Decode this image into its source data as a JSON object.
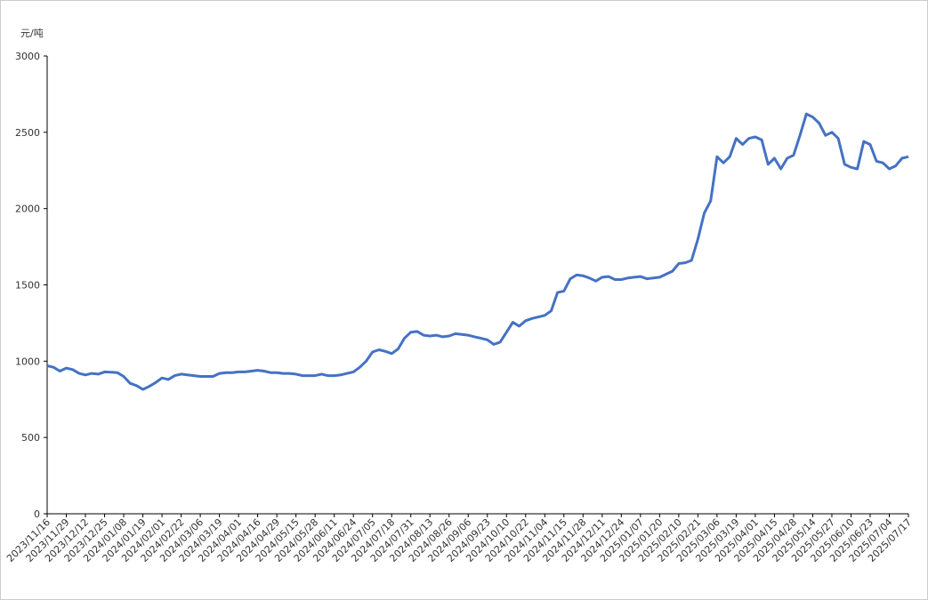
{
  "chart_data": {
    "type": "line",
    "y_label": "元/吨",
    "categories": [
      "2023/11/16",
      null,
      null,
      "2023/11/29",
      null,
      null,
      "2023/12/12",
      null,
      null,
      "2023/12/25",
      null,
      null,
      "2024/01/08",
      null,
      null,
      "2024/01/19",
      null,
      null,
      "2024/02/01",
      null,
      null,
      "2024/02/22",
      null,
      null,
      "2024/03/06",
      null,
      null,
      "2024/03/19",
      null,
      null,
      "2024/04/01",
      null,
      null,
      "2024/04/16",
      null,
      null,
      "2024/04/29",
      null,
      null,
      "2024/05/15",
      null,
      null,
      "2024/05/28",
      null,
      null,
      "2024/06/11",
      null,
      null,
      "2024/06/24",
      null,
      null,
      "2024/07/05",
      null,
      null,
      "2024/07/18",
      null,
      null,
      "2024/07/31",
      null,
      null,
      "2024/08/13",
      null,
      null,
      "2024/08/26",
      null,
      null,
      "2024/09/06",
      null,
      null,
      "2024/09/23",
      null,
      null,
      "2024/10/10",
      null,
      null,
      "2024/10/22",
      null,
      null,
      "2024/11/04",
      null,
      null,
      "2024/11/15",
      null,
      null,
      "2024/11/28",
      null,
      null,
      "2024/12/11",
      null,
      null,
      "2024/12/24",
      null,
      null,
      "2025/01/07",
      null,
      null,
      "2025/01/20",
      null,
      null,
      "2025/02/10",
      null,
      null,
      "2025/02/21",
      null,
      null,
      "2025/03/06",
      null,
      null,
      "2025/03/19",
      null,
      null,
      "2025/04/01",
      null,
      null,
      "2025/04/15",
      null,
      null,
      "2025/04/28",
      null,
      null,
      "2025/05/14",
      null,
      null,
      "2025/05/27",
      null,
      null,
      "2025/06/10",
      null,
      null,
      "2025/06/23",
      null,
      null,
      "2025/07/04",
      null,
      null,
      "2025/07/17"
    ],
    "series": [
      {
        "color": "#4472c4",
        "values": [
          970,
          960,
          935,
          955,
          945,
          920,
          910,
          920,
          915,
          930,
          928,
          925,
          900,
          855,
          840,
          815,
          835,
          860,
          890,
          880,
          905,
          915,
          910,
          905,
          900,
          900,
          900,
          920,
          925,
          925,
          930,
          930,
          935,
          940,
          935,
          925,
          925,
          920,
          920,
          915,
          905,
          905,
          905,
          915,
          905,
          905,
          910,
          920,
          930,
          960,
          1000,
          1060,
          1075,
          1065,
          1050,
          1080,
          1150,
          1190,
          1195,
          1170,
          1165,
          1170,
          1160,
          1165,
          1180,
          1175,
          1170,
          1160,
          1150,
          1140,
          1110,
          1125,
          1190,
          1255,
          1230,
          1265,
          1280,
          1290,
          1300,
          1330,
          1450,
          1460,
          1540,
          1565,
          1560,
          1545,
          1525,
          1550,
          1555,
          1535,
          1535,
          1545,
          1550,
          1555,
          1540,
          1545,
          1550,
          1570,
          1590,
          1640,
          1645,
          1660,
          1800,
          1970,
          2050,
          2340,
          2300,
          2340,
          2460,
          2420,
          2460,
          2470,
          2450,
          2290,
          2330,
          2260,
          2330,
          2350,
          2480,
          2620,
          2600,
          2560,
          2480,
          2500,
          2460,
          2290,
          2270,
          2260,
          2440,
          2420,
          2310,
          2300,
          2260,
          2280,
          2330,
          2340
        ]
      }
    ],
    "ylim": [
      0,
      3000
    ],
    "yticks": [
      0,
      500,
      1000,
      1500,
      2000,
      2500,
      3000
    ],
    "grid": false
  }
}
